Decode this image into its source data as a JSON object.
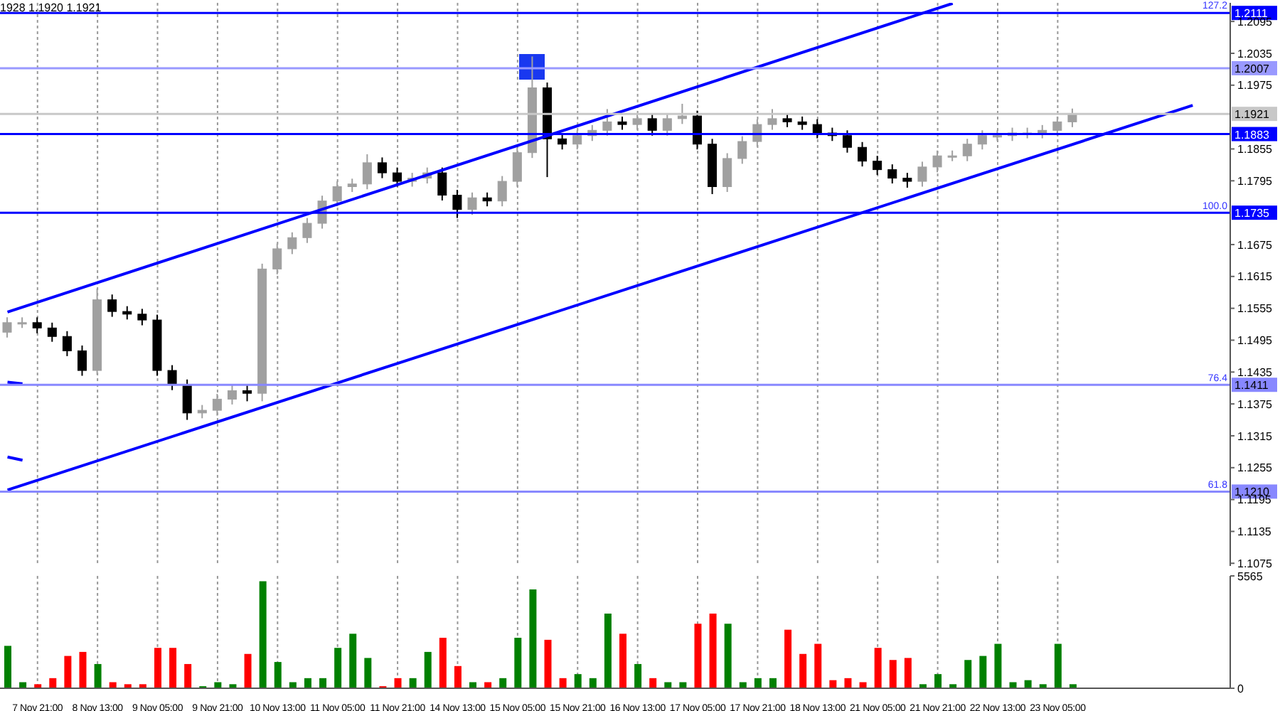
{
  "chart_data": [
    {
      "type": "candlestick",
      "tick_labels": "y",
      "grid": "x",
      "annotations": [
        "1928 1.1920 1.1921",
        {
          "text": "127.2",
          "y": 1.2111
        },
        {
          "text": "100.0",
          "y": 1.1735
        },
        {
          "text": "76.4",
          "y": 1.1411
        },
        {
          "text": "61.8",
          "y": 1.121
        }
      ],
      "ohlc": [
        [
          1.151,
          1.1538,
          1.15,
          1.1528
        ],
        [
          1.1528,
          1.1538,
          1.1518,
          1.1528
        ],
        [
          1.1528,
          1.1538,
          1.1508,
          1.1518
        ],
        [
          1.1518,
          1.1528,
          1.1492,
          1.1502
        ],
        [
          1.1502,
          1.1512,
          1.1465,
          1.1475
        ],
        [
          1.1475,
          1.1485,
          1.1428,
          1.1438
        ],
        [
          1.1438,
          1.1592,
          1.143,
          1.1571
        ],
        [
          1.1571,
          1.1581,
          1.1539,
          1.1549
        ],
        [
          1.1549,
          1.1559,
          1.1534,
          1.1544
        ],
        [
          1.1544,
          1.1554,
          1.1523,
          1.1533
        ],
        [
          1.1533,
          1.1543,
          1.1428,
          1.1438
        ],
        [
          1.1438,
          1.1448,
          1.1401,
          1.1411
        ],
        [
          1.1411,
          1.1421,
          1.1345,
          1.1358
        ],
        [
          1.1358,
          1.1373,
          1.1348,
          1.1363
        ],
        [
          1.1363,
          1.1394,
          1.1353,
          1.1384
        ],
        [
          1.1384,
          1.141,
          1.1374,
          1.14
        ],
        [
          1.14,
          1.141,
          1.138,
          1.1395
        ],
        [
          1.1395,
          1.1639,
          1.138,
          1.1629
        ],
        [
          1.1629,
          1.1677,
          1.1619,
          1.1667
        ],
        [
          1.1667,
          1.1698,
          1.1657,
          1.1688
        ],
        [
          1.1688,
          1.1725,
          1.1678,
          1.1715
        ],
        [
          1.1715,
          1.1767,
          1.1705,
          1.1757
        ],
        [
          1.1757,
          1.1794,
          1.1747,
          1.1784
        ],
        [
          1.1784,
          1.1799,
          1.1774,
          1.1789
        ],
        [
          1.1789,
          1.1845,
          1.1779,
          1.1829
        ],
        [
          1.1829,
          1.1839,
          1.18,
          1.181
        ],
        [
          1.181,
          1.182,
          1.1784,
          1.1794
        ],
        [
          1.1794,
          1.181,
          1.1784,
          1.18
        ],
        [
          1.18,
          1.182,
          1.179,
          1.181
        ],
        [
          1.181,
          1.182,
          1.1758,
          1.1768
        ],
        [
          1.1768,
          1.1778,
          1.1725,
          1.1741
        ],
        [
          1.1741,
          1.1773,
          1.1731,
          1.1763
        ],
        [
          1.1763,
          1.1773,
          1.1747,
          1.1757
        ],
        [
          1.1757,
          1.1804,
          1.1747,
          1.1794
        ],
        [
          1.1794,
          1.1858,
          1.1784,
          1.1848
        ],
        [
          1.1848,
          1.2029,
          1.1838,
          1.197
        ],
        [
          1.197,
          1.198,
          1.1802,
          1.1874
        ],
        [
          1.1874,
          1.1884,
          1.1854,
          1.1864
        ],
        [
          1.1864,
          1.189,
          1.1854,
          1.188
        ],
        [
          1.188,
          1.19,
          1.187,
          1.189
        ],
        [
          1.189,
          1.193,
          1.188,
          1.1906
        ],
        [
          1.1906,
          1.1916,
          1.1891,
          1.1901
        ],
        [
          1.1901,
          1.1922,
          1.1891,
          1.1912
        ],
        [
          1.1912,
          1.1922,
          1.188,
          1.189
        ],
        [
          1.189,
          1.1922,
          1.188,
          1.1912
        ],
        [
          1.1912,
          1.194,
          1.1902,
          1.1917
        ],
        [
          1.1917,
          1.1927,
          1.1854,
          1.1864
        ],
        [
          1.1864,
          1.1874,
          1.177,
          1.1784
        ],
        [
          1.1784,
          1.1847,
          1.1774,
          1.1837
        ],
        [
          1.1837,
          1.1879,
          1.1827,
          1.1869
        ],
        [
          1.1869,
          1.1911,
          1.1859,
          1.1901
        ],
        [
          1.1901,
          1.193,
          1.1891,
          1.1912
        ],
        [
          1.1912,
          1.1922,
          1.1896,
          1.1906
        ],
        [
          1.1906,
          1.1916,
          1.1891,
          1.1901
        ],
        [
          1.1901,
          1.1911,
          1.1875,
          1.1885
        ],
        [
          1.1885,
          1.1895,
          1.187,
          1.188
        ],
        [
          1.188,
          1.189,
          1.1848,
          1.1858
        ],
        [
          1.1858,
          1.1868,
          1.1822,
          1.1832
        ],
        [
          1.1832,
          1.1842,
          1.1806,
          1.1816
        ],
        [
          1.1816,
          1.1826,
          1.179,
          1.18
        ],
        [
          1.18,
          1.181,
          1.1782,
          1.1794
        ],
        [
          1.1794,
          1.1831,
          1.1784,
          1.1821
        ],
        [
          1.1821,
          1.1852,
          1.1811,
          1.1842
        ],
        [
          1.1842,
          1.1852,
          1.1832,
          1.1842
        ],
        [
          1.1842,
          1.1874,
          1.1832,
          1.1864
        ],
        [
          1.1864,
          1.189,
          1.1854,
          1.188
        ],
        [
          1.188,
          1.189,
          1.187,
          1.188
        ],
        [
          1.188,
          1.1895,
          1.187,
          1.1885
        ],
        [
          1.1885,
          1.1895,
          1.1875,
          1.1885
        ],
        [
          1.1885,
          1.19,
          1.1875,
          1.189
        ],
        [
          1.189,
          1.1916,
          1.188,
          1.1906
        ],
        [
          1.1906,
          1.1931,
          1.1896,
          1.1921
        ],
        null,
        null,
        null,
        null,
        null,
        null,
        null,
        null,
        null,
        null
      ],
      "colors": [
        "#a0a0a0",
        "#a0a0a0",
        "#000000",
        "#000000",
        "#000000",
        "#000000",
        "#a0a0a0",
        "#000000",
        "#000000",
        "#000000",
        "#000000",
        "#000000",
        "#000000",
        "#a0a0a0",
        "#a0a0a0",
        "#a0a0a0",
        "#000000",
        "#a0a0a0",
        "#a0a0a0",
        "#a0a0a0",
        "#a0a0a0",
        "#a0a0a0",
        "#a0a0a0",
        "#a0a0a0",
        "#a0a0a0",
        "#000000",
        "#000000",
        "#a0a0a0",
        "#a0a0a0",
        "#000000",
        "#000000",
        "#a0a0a0",
        "#000000",
        "#a0a0a0",
        "#a0a0a0",
        "#a0a0a0",
        "#000000",
        "#000000",
        "#a0a0a0",
        "#a0a0a0",
        "#a0a0a0",
        "#000000",
        "#a0a0a0",
        "#000000",
        "#a0a0a0",
        "#a0a0a0",
        "#000000",
        "#000000",
        "#a0a0a0",
        "#a0a0a0",
        "#a0a0a0",
        "#a0a0a0",
        "#000000",
        "#000000",
        "#000000",
        "#000000",
        "#000000",
        "#000000",
        "#000000",
        "#000000",
        "#000000",
        "#a0a0a0",
        "#a0a0a0",
        "#a0a0a0",
        "#a0a0a0",
        "#a0a0a0",
        "#a0a0a0",
        "#a0a0a0",
        "#a0a0a0",
        "#a0a0a0",
        "#a0a0a0",
        "#a0a0a0",
        null,
        null,
        null,
        null,
        null,
        null,
        null,
        null,
        null,
        null
      ],
      "series": [
        {
          "type": "line",
          "color": "#0000ff",
          "values": [
            1.1548,
            null,
            null,
            null,
            null,
            null,
            null,
            null,
            null,
            null,
            null,
            null,
            null,
            null,
            null,
            null,
            null,
            null,
            null,
            null,
            null,
            null,
            null,
            null,
            null,
            null,
            null,
            null,
            null,
            null,
            null,
            null,
            null,
            null,
            null,
            null,
            null,
            null,
            null,
            null,
            null,
            null,
            null,
            null,
            null,
            null,
            null,
            null,
            null,
            null,
            null,
            null,
            null,
            null,
            null,
            null,
            null,
            null,
            null,
            null,
            null,
            null,
            null,
            1.2129,
            null,
            null,
            null,
            null,
            null,
            null,
            null,
            null,
            null,
            null,
            null,
            null,
            null,
            null,
            null,
            null,
            null,
            null
          ]
        },
        {
          "type": "line",
          "color": "#0000ff",
          "values": [
            1.1213,
            null,
            null,
            null,
            null,
            null,
            null,
            null,
            null,
            null,
            null,
            null,
            null,
            null,
            null,
            null,
            null,
            null,
            null,
            null,
            null,
            null,
            null,
            null,
            null,
            null,
            null,
            null,
            null,
            null,
            null,
            null,
            null,
            null,
            null,
            null,
            null,
            null,
            null,
            null,
            null,
            null,
            null,
            null,
            null,
            null,
            null,
            null,
            null,
            null,
            null,
            null,
            null,
            null,
            null,
            null,
            null,
            null,
            null,
            null,
            null,
            null,
            null,
            null,
            null,
            null,
            null,
            null,
            null,
            null,
            null,
            null,
            null,
            null,
            null,
            null,
            null,
            null,
            null,
            1.1937,
            null,
            null
          ]
        },
        {
          "type": "line",
          "color": "#0000ff",
          "values": [
            1.1416,
            1.1413,
            null,
            null,
            null,
            null,
            null,
            null,
            null,
            null,
            null,
            null,
            null,
            null,
            null,
            null,
            null,
            null,
            null,
            null,
            null,
            null,
            null,
            null,
            null,
            null,
            null,
            null,
            null,
            null,
            null,
            null,
            null,
            null,
            null,
            null,
            null,
            null,
            null,
            null,
            null,
            null,
            null,
            null,
            null,
            null,
            null,
            null,
            null,
            null,
            null,
            null,
            null,
            null,
            null,
            null,
            null,
            null,
            null,
            null,
            null,
            null,
            null,
            null,
            null,
            null,
            null,
            null,
            null,
            null,
            null,
            null,
            null,
            null,
            null,
            null,
            null,
            null,
            null,
            null,
            null,
            null
          ]
        },
        {
          "type": "line",
          "color": "#0000ff",
          "values": [
            1.1275,
            1.1269,
            null,
            null,
            null,
            null,
            null,
            null,
            null,
            null,
            null,
            null,
            null,
            null,
            null,
            null,
            null,
            null,
            null,
            null,
            null,
            null,
            null,
            null,
            null,
            null,
            null,
            null,
            null,
            null,
            null,
            null,
            null,
            null,
            null,
            null,
            null,
            null,
            null,
            null,
            null,
            null,
            null,
            null,
            null,
            null,
            null,
            null,
            null,
            null,
            null,
            null,
            null,
            null,
            null,
            null,
            null,
            null,
            null,
            null,
            null,
            null,
            null,
            null,
            null,
            null,
            null,
            null,
            null,
            null,
            null,
            null,
            null,
            null,
            null,
            null,
            null,
            null,
            null,
            null,
            null,
            null
          ]
        }
      ],
      "ref_lines": [
        {
          "axis": "y",
          "value": 1.2111,
          "label": "1.2111",
          "color": "#0000ff"
        },
        {
          "axis": "y",
          "value": 1.2007,
          "label": "1.2007",
          "color": "#9999ff"
        },
        {
          "axis": "y",
          "value": 1.1921,
          "label": "1.1921",
          "color": "#c8c8c8"
        },
        {
          "axis": "y",
          "value": 1.1883,
          "label": "1.1883",
          "color": "#0000ff"
        },
        {
          "axis": "y",
          "value": 1.1735,
          "label": "1.1735",
          "color": "#0000ff"
        },
        {
          "axis": "y",
          "value": 1.1411,
          "label": "1.1411",
          "color": "#8888ff"
        },
        {
          "axis": "y",
          "value": 1.121,
          "label": "1.1210",
          "color": "#8888ff"
        }
      ],
      "ylim": [
        1.107,
        1.213
      ],
      "yticks": [
        1.1075,
        1.1135,
        1.1195,
        1.1255,
        1.1315,
        1.1375,
        1.1435,
        1.1495,
        1.1555,
        1.1615,
        1.1675,
        1.1795,
        1.1855,
        1.1975,
        1.2035,
        1.2095
      ]
    },
    {
      "type": "bar",
      "grid": "x",
      "categories": [
        null,
        null,
        "7 Nov 21:00",
        null,
        null,
        null,
        "8 Nov 13:00",
        null,
        null,
        null,
        "9 Nov 05:00",
        null,
        null,
        null,
        "9 Nov 21:00",
        null,
        null,
        null,
        "10 Nov 13:00",
        null,
        null,
        null,
        "11 Nov 05:00",
        null,
        null,
        null,
        "11 Nov 21:00",
        null,
        null,
        null,
        "14 Nov 13:00",
        null,
        null,
        null,
        "15 Nov 05:00",
        null,
        null,
        null,
        "15 Nov 21:00",
        null,
        null,
        null,
        "16 Nov 13:00",
        null,
        null,
        null,
        "17 Nov 05:00",
        null,
        null,
        null,
        "17 Nov 21:00",
        null,
        null,
        null,
        "18 Nov 13:00",
        null,
        null,
        null,
        "21 Nov 05:00",
        null,
        null,
        null,
        "21 Nov 21:00",
        null,
        null,
        null,
        "22 Nov 13:00",
        null,
        null,
        null,
        "23 Nov 05:00",
        null,
        null,
        null,
        null,
        null,
        null,
        null,
        null,
        null,
        null,
        null
      ],
      "values": [
        2100,
        300,
        200,
        500,
        1600,
        1800,
        1200,
        300,
        200,
        200,
        2000,
        2000,
        1200,
        100,
        300,
        200,
        1700,
        5300,
        1300,
        300,
        500,
        500,
        2000,
        2700,
        1500,
        100,
        500,
        500,
        1800,
        2500,
        1100,
        300,
        300,
        500,
        2500,
        4900,
        2400,
        500,
        700,
        500,
        3700,
        2700,
        1200,
        500,
        300,
        300,
        3200,
        3700,
        3200,
        300,
        500,
        500,
        2900,
        1700,
        2200,
        400,
        500,
        300,
        2000,
        1400,
        1500,
        200,
        700,
        200,
        1400,
        1600,
        2200,
        300,
        400,
        200,
        2200,
        200,
        null,
        null,
        null,
        null,
        null,
        null,
        null,
        null,
        null,
        null
      ],
      "colors": [
        "#008000",
        "#008000",
        "#ff0000",
        "#ff0000",
        "#ff0000",
        "#ff0000",
        "#008000",
        "#ff0000",
        "#ff0000",
        "#ff0000",
        "#ff0000",
        "#ff0000",
        "#ff0000",
        "#008000",
        "#008000",
        "#008000",
        "#ff0000",
        "#008000",
        "#008000",
        "#008000",
        "#008000",
        "#008000",
        "#008000",
        "#008000",
        "#008000",
        "#ff0000",
        "#ff0000",
        "#008000",
        "#008000",
        "#ff0000",
        "#ff0000",
        "#008000",
        "#ff0000",
        "#008000",
        "#008000",
        "#008000",
        "#ff0000",
        "#ff0000",
        "#008000",
        "#008000",
        "#008000",
        "#ff0000",
        "#008000",
        "#ff0000",
        "#008000",
        "#008000",
        "#ff0000",
        "#ff0000",
        "#008000",
        "#008000",
        "#008000",
        "#008000",
        "#ff0000",
        "#ff0000",
        "#ff0000",
        "#ff0000",
        "#ff0000",
        "#ff0000",
        "#ff0000",
        "#ff0000",
        "#ff0000",
        "#008000",
        "#008000",
        "#008000",
        "#008000",
        "#008000",
        "#008000",
        "#008000",
        "#008000",
        "#008000",
        "#008000",
        "#008000",
        null,
        null,
        null,
        null,
        null,
        null,
        null,
        null,
        null,
        null
      ],
      "ylim": [
        0,
        5565
      ],
      "yticks": [
        0,
        5565
      ]
    }
  ]
}
